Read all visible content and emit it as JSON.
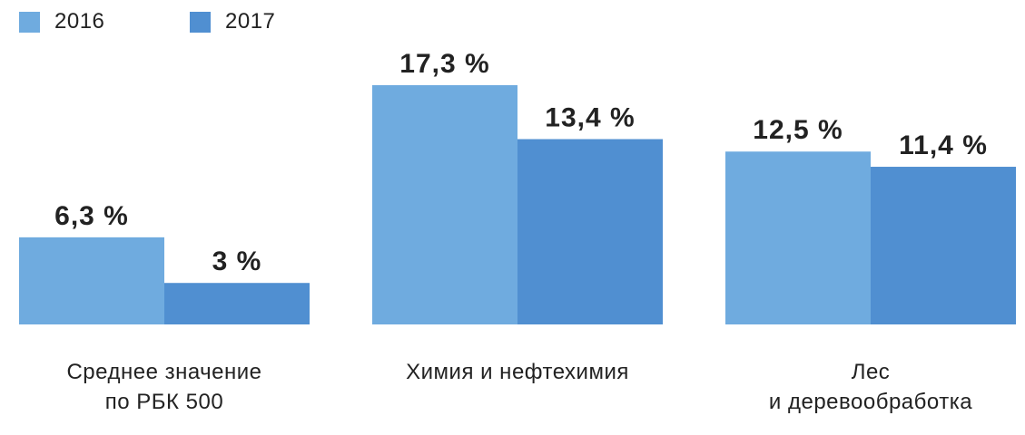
{
  "chart_data": {
    "type": "bar",
    "categories": [
      [
        "Среднее значение",
        "по РБК 500"
      ],
      [
        "Химия и нефтехимия"
      ],
      [
        "Лес",
        "и деревообработка"
      ]
    ],
    "series": [
      {
        "name": "2016",
        "color": "#6fabdf",
        "values": [
          6.3,
          17.3,
          12.5
        ],
        "labels": [
          "6,3 %",
          "17,3 %",
          "12,5 %"
        ]
      },
      {
        "name": "2017",
        "color": "#508fd1",
        "values": [
          3,
          13.4,
          11.4
        ],
        "labels": [
          "3 %",
          "13,4 %",
          "11,4 %"
        ]
      }
    ],
    "ylim": [
      0,
      17.3
    ],
    "grid": false,
    "legend": "top-left",
    "unit": "%"
  }
}
